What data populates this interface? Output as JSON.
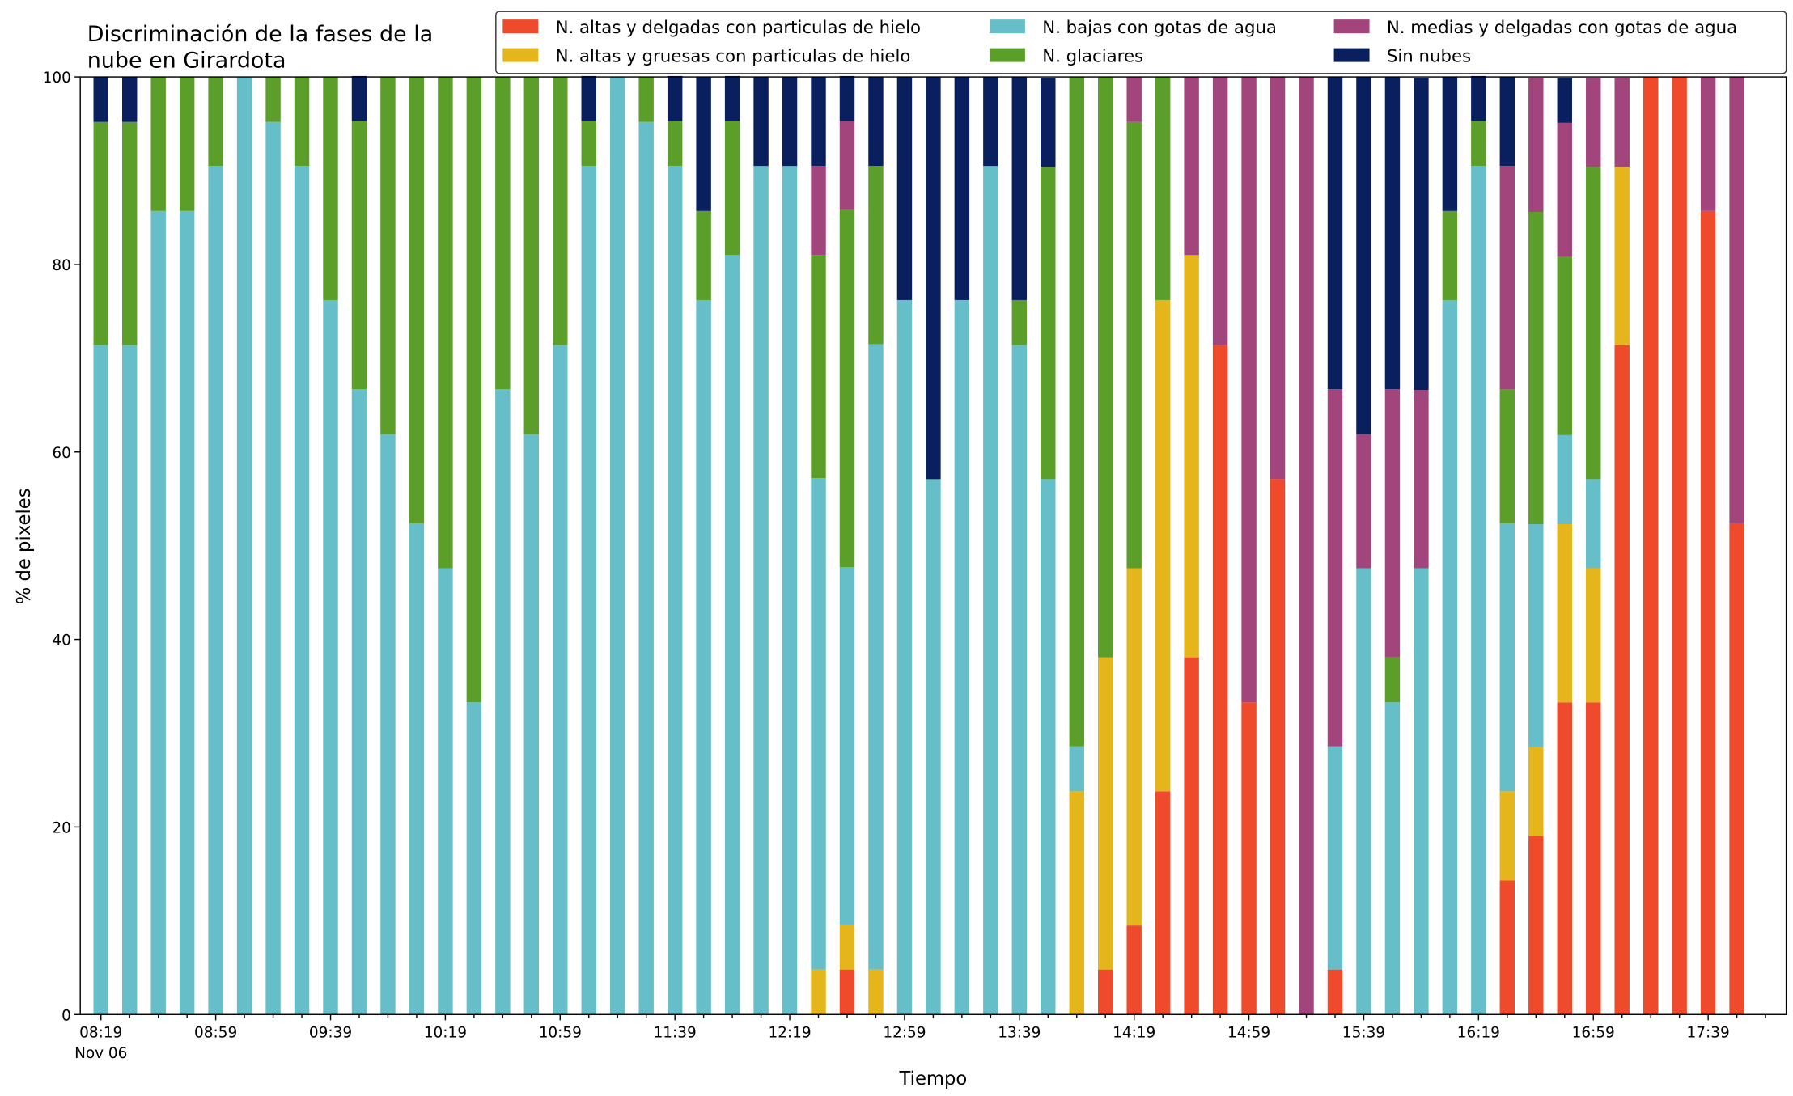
{
  "chart_data": {
    "type": "stacked_bar",
    "title": "Discriminación de la fases de la nube en Girardota",
    "xlabel": "Tiempo",
    "ylabel": "% de pixeles",
    "x_sublabel": "Nov 06",
    "categories": [
      "08:19",
      null,
      null,
      null,
      "08:59",
      null,
      null,
      null,
      "09:39",
      null,
      null,
      null,
      "10:19",
      null,
      null,
      null,
      "10:59",
      null,
      null,
      null,
      "11:39",
      null,
      null,
      null,
      "12:19",
      null,
      null,
      null,
      "12:59",
      null,
      null,
      null,
      "13:39",
      null,
      null,
      null,
      "14:19",
      null,
      null,
      null,
      "14:59",
      null,
      null,
      null,
      "15:39",
      null,
      null,
      null,
      "16:19",
      null,
      null,
      null,
      "16:59",
      null,
      null,
      null,
      "17:39",
      null
    ],
    "ylim": [
      0,
      100
    ],
    "yticks": [
      0,
      20,
      40,
      60,
      80,
      100
    ],
    "legend": "top-right",
    "series": [
      {
        "name": "N. altas y delgadas con particulas de hielo",
        "color": "#ee4a2b",
        "values": [
          0,
          0,
          0,
          0,
          0,
          0,
          0,
          0,
          0,
          0,
          0,
          0,
          0,
          0,
          0,
          0,
          0,
          0,
          0,
          0,
          0,
          0,
          0,
          0,
          0,
          0,
          4.8,
          0,
          0,
          0,
          0,
          0,
          0,
          0,
          0,
          4.8,
          9.5,
          23.8,
          38.1,
          71.4,
          33.3,
          57.1,
          0,
          4.8,
          0,
          0,
          0,
          0,
          0,
          14.3,
          19.0,
          33.3,
          33.3,
          71.4,
          100,
          100,
          85.7,
          52.4
        ]
      },
      {
        "name": "N. altas y gruesas con particulas de hielo",
        "color": "#e5b61b",
        "values": [
          0,
          0,
          0,
          0,
          0,
          0,
          0,
          0,
          0,
          0,
          0,
          0,
          0,
          0,
          0,
          0,
          0,
          0,
          0,
          0,
          0,
          0,
          0,
          0,
          0,
          4.8,
          4.8,
          4.8,
          0,
          0,
          0,
          0,
          0,
          0,
          23.8,
          33.3,
          38.1,
          52.4,
          42.9,
          0,
          0,
          0,
          0,
          0,
          0,
          0,
          0,
          0,
          0,
          9.5,
          9.5,
          19.0,
          14.3,
          19.0,
          0,
          0,
          0,
          0
        ]
      },
      {
        "name": "N. bajas con gotas de agua",
        "color": "#66bec9",
        "values": [
          71.4,
          71.4,
          85.7,
          85.7,
          90.5,
          100,
          95.2,
          90.5,
          76.2,
          66.7,
          61.9,
          52.4,
          47.6,
          33.3,
          66.7,
          61.9,
          71.4,
          90.5,
          100,
          95.2,
          90.5,
          76.2,
          81.0,
          90.5,
          90.5,
          52.4,
          38.1,
          66.7,
          76.2,
          57.1,
          76.2,
          90.5,
          71.4,
          57.1,
          4.8,
          0,
          0,
          0,
          0,
          0,
          0,
          0,
          0,
          23.8,
          47.6,
          33.3,
          47.6,
          76.2,
          90.5,
          28.6,
          23.8,
          9.5,
          9.5,
          0,
          0,
          0,
          0,
          0
        ]
      },
      {
        "name": "N. glaciares",
        "color": "#5c9e2a",
        "values": [
          23.8,
          23.8,
          14.3,
          14.3,
          9.5,
          0,
          4.8,
          9.5,
          23.8,
          28.6,
          38.1,
          47.6,
          52.4,
          66.7,
          33.3,
          38.1,
          28.6,
          4.8,
          0,
          4.8,
          4.8,
          9.5,
          14.3,
          0,
          0,
          23.8,
          38.1,
          19.0,
          0,
          0,
          0,
          0,
          4.8,
          33.3,
          71.4,
          61.9,
          47.6,
          23.8,
          0,
          0,
          0,
          0,
          0,
          0,
          0,
          4.8,
          0,
          9.5,
          4.8,
          14.3,
          33.3,
          19.0,
          33.3,
          0,
          0,
          0,
          0,
          0
        ]
      },
      {
        "name": "N. medias y delgadas con gotas de agua",
        "color": "#a3457d",
        "values": [
          0,
          0,
          0,
          0,
          0,
          0,
          0,
          0,
          0,
          0,
          0,
          0,
          0,
          0,
          0,
          0,
          0,
          0,
          0,
          0,
          0,
          0,
          0,
          0,
          0,
          9.5,
          9.5,
          0,
          0,
          0,
          0,
          0,
          0,
          0,
          0,
          0,
          4.8,
          0,
          19.0,
          28.6,
          66.7,
          42.9,
          100,
          38.1,
          14.3,
          28.6,
          19.0,
          0,
          0,
          23.8,
          14.3,
          14.3,
          9.5,
          9.5,
          0,
          0,
          14.3,
          47.6
        ]
      },
      {
        "name": "Sin nubes",
        "color": "#0a1f5e",
        "values": [
          4.8,
          4.8,
          0,
          0,
          0,
          0,
          0,
          0,
          0,
          4.8,
          0,
          0,
          0,
          0,
          0,
          0,
          0,
          4.8,
          0,
          0,
          4.8,
          14.3,
          4.8,
          9.5,
          9.5,
          9.5,
          4.8,
          9.5,
          23.8,
          42.9,
          23.8,
          9.5,
          23.8,
          9.5,
          0,
          0,
          0,
          0,
          0,
          0,
          0,
          0,
          0,
          33.3,
          38.1,
          33.3,
          33.3,
          14.3,
          4.8,
          9.5,
          0,
          4.8,
          0,
          0,
          0,
          0,
          0,
          0
        ]
      }
    ]
  }
}
